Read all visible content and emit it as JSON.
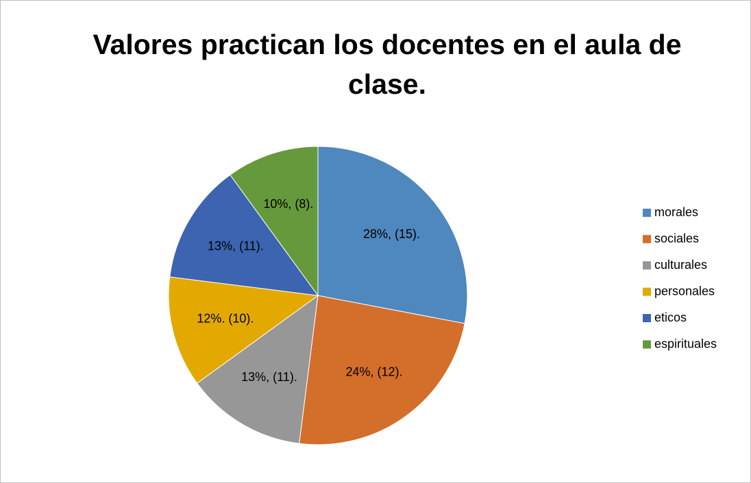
{
  "chart_data": {
    "type": "pie",
    "title": "Valores practican los docentes en el aula de clase.",
    "categories": [
      "morales",
      "sociales",
      "culturales",
      "personales",
      "eticos",
      "espirituales"
    ],
    "values": [
      28,
      24,
      13,
      12,
      13,
      10
    ],
    "value_labels": [
      "28%, (15).",
      "24%, (12).",
      "13%, (11).",
      "12%. (10).",
      "13%, (11).",
      "10%, (8)."
    ],
    "colors": [
      "#4f87bf",
      "#d46e2b",
      "#979797",
      "#e3a900",
      "#3c64b0",
      "#66993b"
    ],
    "legend": "right"
  }
}
